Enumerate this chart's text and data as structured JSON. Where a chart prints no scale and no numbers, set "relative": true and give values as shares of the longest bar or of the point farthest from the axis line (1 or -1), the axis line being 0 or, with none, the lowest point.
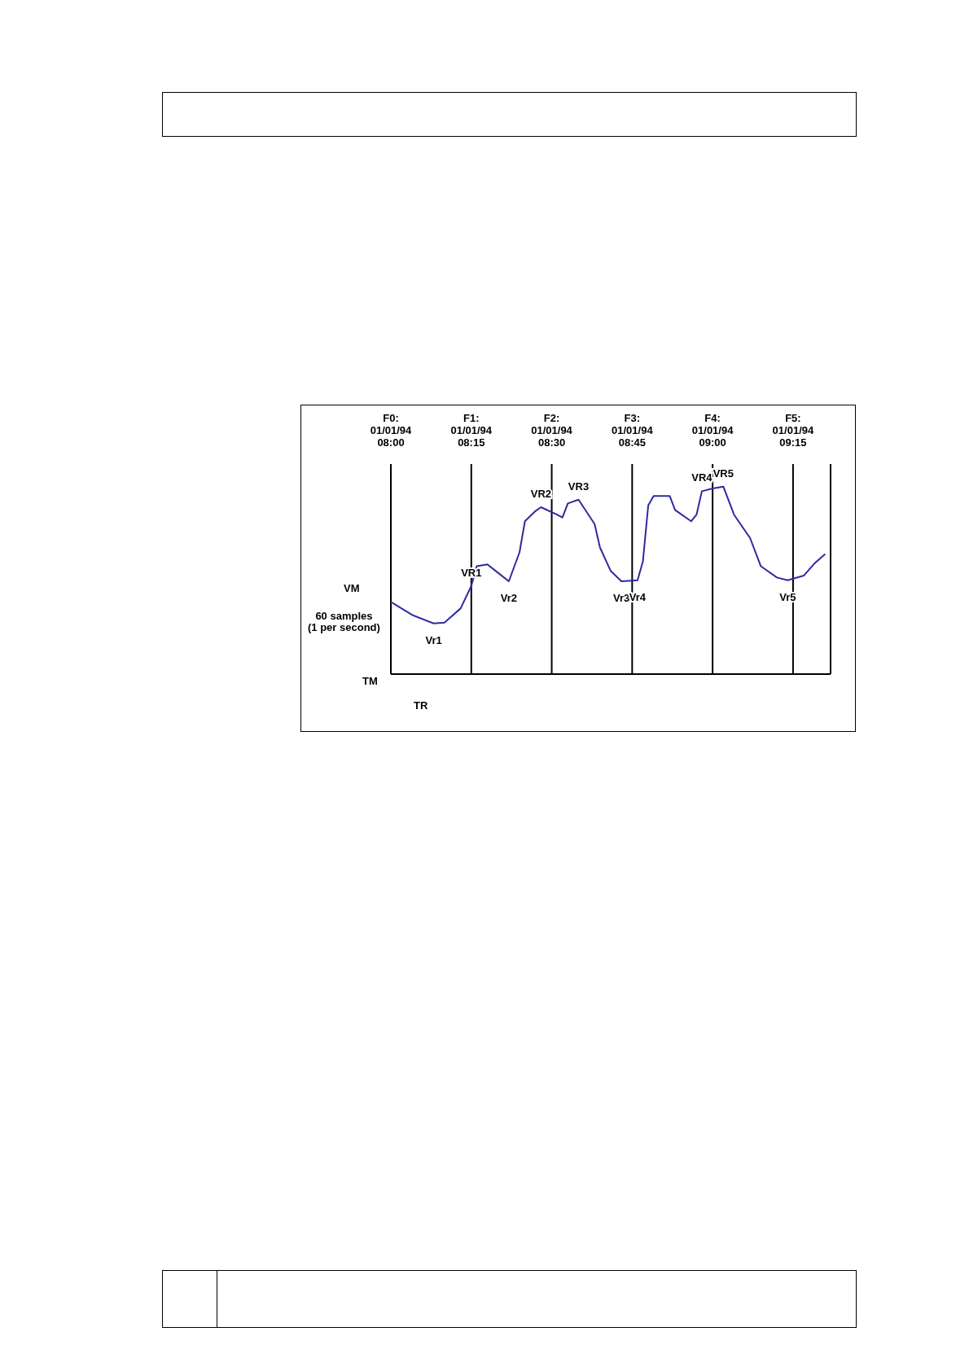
{
  "chart_data": {
    "type": "line",
    "relative": true,
    "grid": "x",
    "xticks": [
      {
        "value": "1994-01-01T08:00",
        "label": "F0:\n01/01/94\n08:00"
      },
      {
        "value": "1994-01-01T08:15",
        "label": "F1:\n01/01/94\n08:15"
      },
      {
        "value": "1994-01-01T08:30",
        "label": "F2:\n01/01/94\n08:30"
      },
      {
        "value": "1994-01-01T08:45",
        "label": "F3:\n01/01/94\n08:45"
      },
      {
        "value": "1994-01-01T09:00",
        "label": "F4:\n01/01/94\n09:00"
      },
      {
        "value": "1994-01-01T09:15",
        "label": "F5:\n01/01/94\n09:15"
      }
    ],
    "x": [
      "1994-01-01T08:00",
      "1994-01-01T08:04",
      "1994-01-01T08:08",
      "1994-01-01T08:10",
      "1994-01-01T08:13",
      "1994-01-01T08:15",
      "1994-01-01T08:16",
      "1994-01-01T08:18",
      "1994-01-01T08:20",
      "1994-01-01T08:22",
      "1994-01-01T08:24",
      "1994-01-01T08:25",
      "1994-01-01T08:27",
      "1994-01-01T08:28",
      "1994-01-01T08:31",
      "1994-01-01T08:32",
      "1994-01-01T08:33",
      "1994-01-01T08:35",
      "1994-01-01T08:38",
      "1994-01-01T08:39",
      "1994-01-01T08:41",
      "1994-01-01T08:43",
      "1994-01-01T08:46",
      "1994-01-01T08:47",
      "1994-01-01T08:48",
      "1994-01-01T08:49",
      "1994-01-01T08:52",
      "1994-01-01T08:53",
      "1994-01-01T08:56",
      "1994-01-01T08:57",
      "1994-01-01T08:58",
      "1994-01-01T09:00",
      "1994-01-01T09:02",
      "1994-01-01T09:04",
      "1994-01-01T09:07",
      "1994-01-01T09:09",
      "1994-01-01T09:12",
      "1994-01-01T09:14",
      "1994-01-01T09:17",
      "1994-01-01T09:19",
      "1994-01-01T09:21"
    ],
    "series": [
      {
        "color": "#2e2aa0",
        "values": [
          0.385,
          0.315,
          0.27,
          0.275,
          0.35,
          0.47,
          0.575,
          0.585,
          0.54,
          0.495,
          0.65,
          0.815,
          0.87,
          0.89,
          0.85,
          0.835,
          0.91,
          0.93,
          0.8,
          0.675,
          0.55,
          0.495,
          0.5,
          0.6,
          0.9,
          0.95,
          0.95,
          0.875,
          0.815,
          0.85,
          0.975,
          0.99,
          1.0,
          0.85,
          0.725,
          0.575,
          0.515,
          0.5,
          0.525,
          0.59,
          0.64
        ]
      }
    ],
    "xlim": [
      "1994-01-01T08:00",
      "1994-01-01T09:22"
    ],
    "annotations": [
      {
        "text": "Vr1",
        "x": "1994-01-01T08:08",
        "y": 0.27
      },
      {
        "text": "VR1",
        "x": "1994-01-01T08:15",
        "y": 0.47
      },
      {
        "text": "Vr2",
        "x": "1994-01-01T08:22",
        "y": 0.495
      },
      {
        "text": "VR2",
        "x": "1994-01-01T08:28",
        "y": 0.89
      },
      {
        "text": "VR3",
        "x": "1994-01-01T08:35",
        "y": 0.93
      },
      {
        "text": "Vr3",
        "x": "1994-01-01T08:43",
        "y": 0.495
      },
      {
        "text": "Vr4",
        "x": "1994-01-01T08:46",
        "y": 0.5
      },
      {
        "text": "VR4",
        "x": "1994-01-01T08:58",
        "y": 0.975
      },
      {
        "text": "VR5",
        "x": "1994-01-01T09:02",
        "y": 1.0
      },
      {
        "text": "Vr5",
        "x": "1994-01-01T09:14",
        "y": 0.5
      },
      "VM",
      "60 samples\n(1 per second)",
      "TM",
      "TR"
    ]
  }
}
